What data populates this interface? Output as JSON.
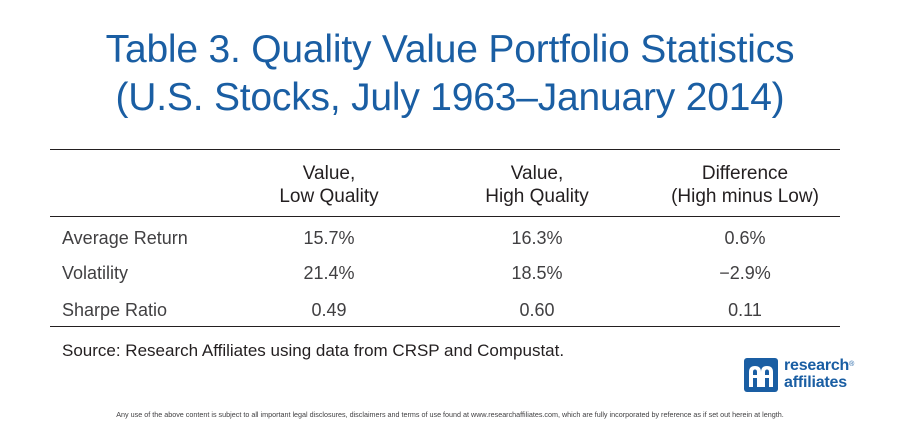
{
  "chart_data": {
    "type": "table",
    "title_line1": "Table 3. Quality Value Portfolio Statistics",
    "title_line2": "(U.S. Stocks, July 1963–January 2014)",
    "columns": [
      {
        "line1": "Value,",
        "line2": "Low Quality"
      },
      {
        "line1": "Value,",
        "line2": "High Quality"
      },
      {
        "line1": "Difference",
        "line2": "(High minus Low)"
      }
    ],
    "rows": [
      {
        "label": "Average Return",
        "values": [
          "15.7%",
          "16.3%",
          "0.6%"
        ]
      },
      {
        "label": "Volatility",
        "values": [
          "21.4%",
          "18.5%",
          "−2.9%"
        ]
      },
      {
        "label": "Sharpe Ratio",
        "values": [
          "0.49",
          "0.60",
          "0.11"
        ]
      }
    ],
    "source": "Source: Research Affiliates using data from CRSP and Compustat."
  },
  "logo": {
    "line1": "research",
    "line2": "affiliates",
    "mark": "®",
    "icon": "research-affiliates-logo-icon",
    "color": "#1a5ea3"
  },
  "disclaimer": "Any use of the above content is subject to all important legal disclosures, disclaimers and terms of use found at www.researchaffiliates.com, which are fully incorporated by reference as if set out herein at length."
}
